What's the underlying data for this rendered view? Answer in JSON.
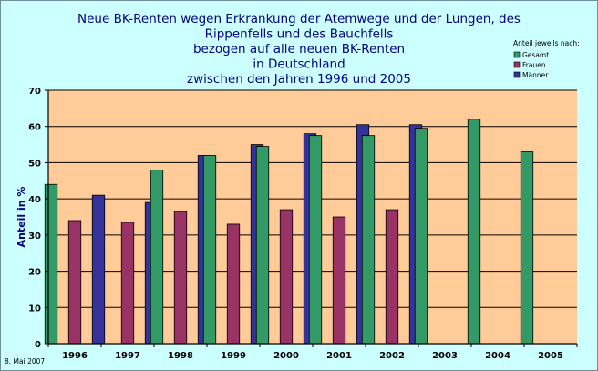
{
  "chart_data": {
    "type": "bar",
    "title_lines": [
      "Neue BK-Renten wegen Erkrankung der Atemwege und der Lungen, des",
      "Rippenfells und des Bauchfells",
      "bezogen auf alle neuen BK-Renten",
      "in Deutschland",
      "zwischen den Jahren 1996 und 2005"
    ],
    "ylabel": "Anteil in %",
    "ylim": [
      0,
      70
    ],
    "yticks": [
      "0",
      "10",
      "20",
      "30",
      "40",
      "50",
      "60",
      "70"
    ],
    "categories": [
      "1996",
      "1997",
      "1998",
      "1999",
      "2000",
      "2001",
      "2002",
      "2003",
      "2004",
      "2005"
    ],
    "legend_title": "Anteil jeweils nach:",
    "legend_position": "top-right",
    "grid": true,
    "series": [
      {
        "name": "Gesamt",
        "color": "#339966",
        "values": [
          44,
          null,
          48,
          52,
          54.5,
          57.5,
          57.5,
          59.5,
          62,
          53
        ]
      },
      {
        "name": "Frauen",
        "color": "#993366",
        "values": [
          34,
          33.5,
          36.5,
          33,
          37,
          35,
          37,
          null,
          null,
          null
        ]
      },
      {
        "name": "Männer",
        "color": "#333399",
        "values": [
          41,
          39,
          52,
          55,
          58,
          60.5,
          60.5,
          null,
          null,
          null
        ]
      }
    ],
    "plot_background": "#ffcc99",
    "footnote": "8. Mai 2007"
  }
}
